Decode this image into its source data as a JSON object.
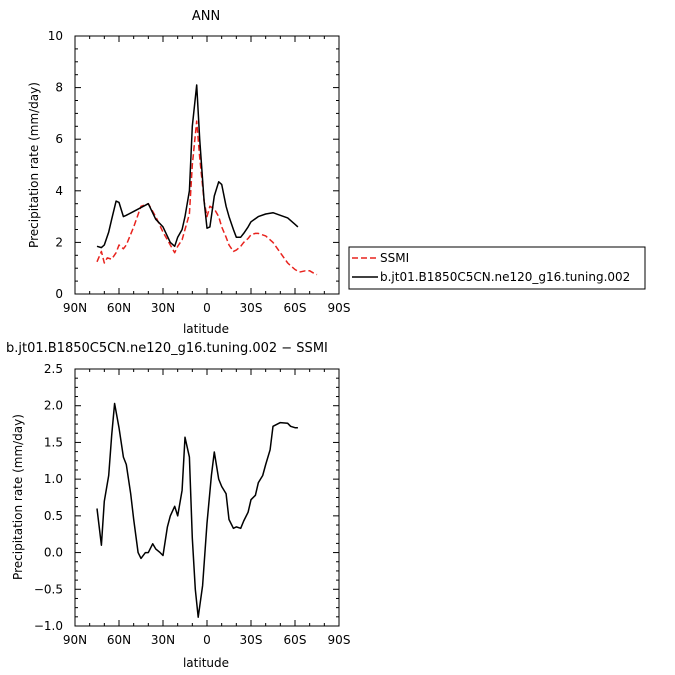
{
  "chart_data": [
    {
      "type": "line",
      "title": "ANN",
      "xlabel": "latitude",
      "ylabel": "Precipitation rate  (mm/day)",
      "x_tick_labels": [
        "90N",
        "60N",
        "30N",
        "0",
        "30S",
        "60S",
        "90S"
      ],
      "x_tick_values": [
        90,
        60,
        30,
        0,
        -30,
        -60,
        -90
      ],
      "xlim": [
        90,
        -90
      ],
      "ylim": [
        0,
        10
      ],
      "y_ticks": [
        0,
        2,
        4,
        6,
        8,
        10
      ],
      "y_tick_labels": [
        "0",
        "2",
        "4",
        "6",
        "8",
        "10"
      ],
      "legend_position": "right",
      "series": [
        {
          "name": "SSMI",
          "style": "dashed",
          "color": "#e8231e",
          "x": [
            75,
            72,
            70,
            68,
            65,
            62,
            60,
            57,
            55,
            50,
            45,
            40,
            35,
            30,
            25,
            22,
            20,
            17,
            15,
            12,
            10,
            7,
            5,
            2,
            0,
            -2,
            -5,
            -8,
            -10,
            -13,
            -15,
            -18,
            -20,
            -23,
            -25,
            -28,
            -30,
            -33,
            -35,
            -40,
            -45,
            -50,
            -55,
            -60,
            -63,
            -67,
            -70,
            -73,
            -75
          ],
          "y": [
            1.25,
            1.65,
            1.2,
            1.4,
            1.35,
            1.6,
            1.9,
            1.75,
            1.9,
            2.6,
            3.4,
            3.5,
            3.0,
            2.4,
            1.9,
            1.6,
            1.85,
            2.1,
            2.5,
            3.1,
            5.0,
            6.7,
            5.3,
            3.6,
            3.0,
            3.4,
            3.3,
            3.0,
            2.6,
            2.2,
            1.9,
            1.65,
            1.7,
            1.85,
            2.0,
            2.15,
            2.3,
            2.35,
            2.35,
            2.25,
            2.0,
            1.6,
            1.2,
            0.95,
            0.85,
            0.9,
            0.9,
            0.8,
            0.75
          ]
        },
        {
          "name": "b.jt01.B1850C5CN.ne120_g16.tuning.002",
          "style": "solid",
          "color": "#000000",
          "x": [
            75,
            72,
            70,
            67,
            65,
            62,
            60,
            57,
            55,
            50,
            45,
            40,
            35,
            30,
            25,
            22,
            20,
            17,
            15,
            12,
            10,
            7,
            5,
            2,
            0,
            -2,
            -5,
            -8,
            -10,
            -13,
            -15,
            -18,
            -20,
            -23,
            -25,
            -28,
            -30,
            -35,
            -40,
            -45,
            -50,
            -55,
            -60,
            -62
          ],
          "y": [
            1.85,
            1.8,
            1.9,
            2.4,
            2.9,
            3.6,
            3.55,
            3.0,
            3.05,
            3.2,
            3.35,
            3.5,
            2.9,
            2.6,
            2.0,
            1.85,
            2.2,
            2.5,
            3.0,
            4.0,
            6.5,
            8.1,
            6.0,
            3.6,
            2.55,
            2.6,
            3.8,
            4.35,
            4.25,
            3.4,
            3.0,
            2.5,
            2.2,
            2.2,
            2.35,
            2.6,
            2.8,
            3.0,
            3.1,
            3.15,
            3.05,
            2.95,
            2.7,
            2.6
          ]
        }
      ]
    },
    {
      "type": "line",
      "title": "b.jt01.B1850C5CN.ne120_g16.tuning.002 − SSMI",
      "xlabel": "latitude",
      "ylabel": "Precipitation rate  (mm/day)",
      "x_tick_labels": [
        "90N",
        "60N",
        "30N",
        "0",
        "30S",
        "60S",
        "90S"
      ],
      "x_tick_values": [
        90,
        60,
        30,
        0,
        -30,
        -60,
        -90
      ],
      "xlim": [
        90,
        -90
      ],
      "ylim": [
        -1.0,
        2.5
      ],
      "y_ticks": [
        -1.0,
        -0.5,
        0.0,
        0.5,
        1.0,
        1.5,
        2.0,
        2.5
      ],
      "y_tick_labels": [
        "−1.0",
        "−0.5",
        "0.0",
        "0.5",
        "1.0",
        "1.5",
        "2.0",
        "2.5"
      ],
      "series": [
        {
          "color": "#000000",
          "style": "solid",
          "x": [
            75,
            72,
            70,
            67,
            65,
            63,
            60,
            57,
            55,
            52,
            50,
            47,
            45,
            42,
            40,
            37,
            35,
            32,
            30,
            27,
            25,
            22,
            20,
            17,
            15,
            12,
            10,
            8,
            6,
            3,
            0,
            -3,
            -5,
            -8,
            -10,
            -13,
            -15,
            -18,
            -20,
            -23,
            -25,
            -28,
            -30,
            -33,
            -35,
            -38,
            -40,
            -43,
            -45,
            -50,
            -55,
            -57,
            -60,
            -62
          ],
          "y": [
            0.6,
            0.1,
            0.7,
            1.05,
            1.6,
            2.03,
            1.7,
            1.3,
            1.2,
            0.8,
            0.45,
            0.0,
            -0.08,
            0.0,
            0.0,
            0.12,
            0.05,
            0.0,
            -0.04,
            0.35,
            0.5,
            0.63,
            0.5,
            0.85,
            1.57,
            1.3,
            0.2,
            -0.5,
            -0.88,
            -0.45,
            0.4,
            1.05,
            1.37,
            1.0,
            0.9,
            0.8,
            0.45,
            0.33,
            0.35,
            0.33,
            0.43,
            0.55,
            0.72,
            0.78,
            0.95,
            1.05,
            1.2,
            1.4,
            1.72,
            1.77,
            1.76,
            1.72,
            1.7,
            1.7
          ]
        }
      ]
    }
  ]
}
